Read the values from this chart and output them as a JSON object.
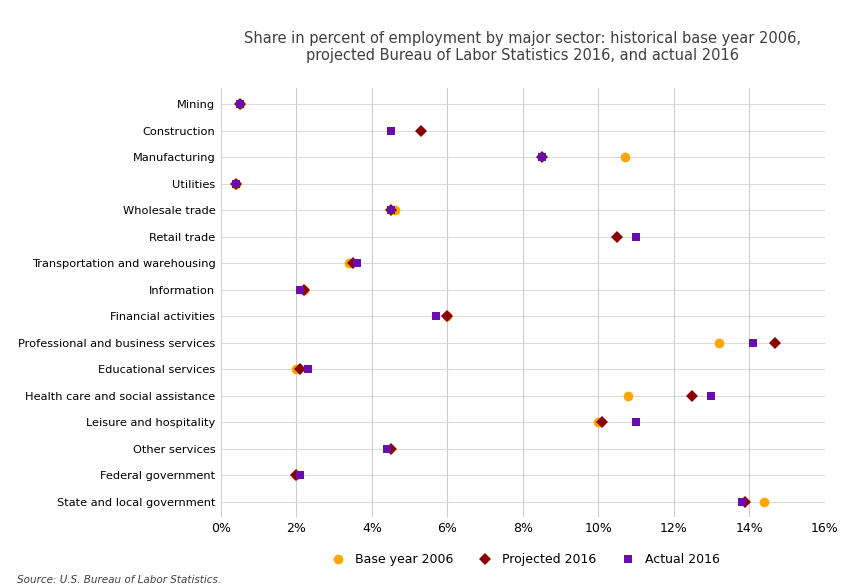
{
  "title": "Share in percent of employment by major sector: historical base year 2006,\nprojected Bureau of Labor Statistics 2016, and actual 2016",
  "source": "Source: U.S. Bureau of Labor Statistics.",
  "sectors": [
    "Mining",
    "Construction",
    "Manufacturing",
    "Utilities",
    "Wholesale trade",
    "Retail trade",
    "Transportation and warehousing",
    "Information",
    "Financial activities",
    "Professional and business services",
    "Educational services",
    "Health care and social assistance",
    "Leisure and hospitality",
    "Other services",
    "Federal government",
    "State and local government"
  ],
  "base_2006": [
    0.5,
    null,
    10.7,
    0.4,
    4.6,
    null,
    3.4,
    2.2,
    6.0,
    13.2,
    2.0,
    10.8,
    10.0,
    null,
    2.0,
    14.4
  ],
  "projected_2016": [
    0.5,
    5.3,
    8.5,
    0.4,
    4.5,
    10.5,
    3.5,
    2.2,
    6.0,
    14.7,
    2.1,
    12.5,
    10.1,
    4.5,
    2.0,
    13.9
  ],
  "actual_2016": [
    0.5,
    4.5,
    8.5,
    0.4,
    4.5,
    11.0,
    3.6,
    2.1,
    5.7,
    14.1,
    2.3,
    13.0,
    11.0,
    4.4,
    2.1,
    13.8
  ],
  "color_base": "#FFA500",
  "color_proj": "#8B0000",
  "color_actual": "#6A0DAD",
  "xlim": [
    0,
    0.16
  ],
  "xticks": [
    0,
    0.02,
    0.04,
    0.06,
    0.08,
    0.1,
    0.12,
    0.14,
    0.16
  ],
  "xticklabels": [
    "0%",
    "2%",
    "4%",
    "6%",
    "8%",
    "10%",
    "12%",
    "14%",
    "16%"
  ],
  "legend_labels": [
    "Base year 2006",
    "Projected 2016",
    "Actual 2016"
  ],
  "background_color": "#ffffff",
  "grid_color": "#cccccc"
}
